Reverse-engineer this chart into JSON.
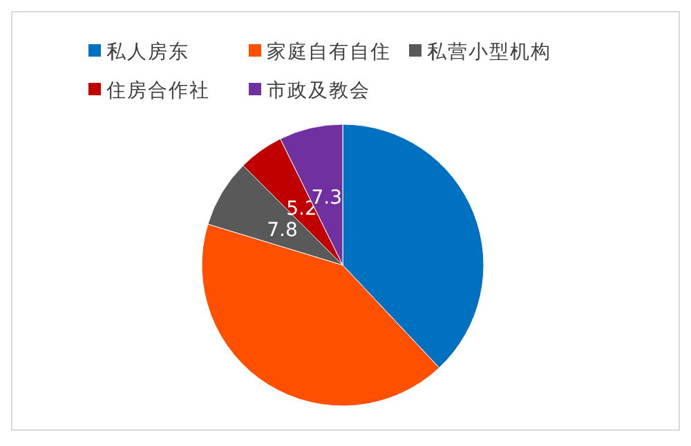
{
  "chart_data": {
    "type": "pie",
    "categories": [
      "私人房东",
      "家庭自有自住",
      "私营小型机构",
      "住房合作社",
      "市政及教会"
    ],
    "values": [
      38.0,
      41.7,
      7.8,
      5.2,
      7.3
    ],
    "colors": [
      "#0070c0",
      "#ff5000",
      "#595959",
      "#c00000",
      "#7030a0"
    ],
    "value_labels": [
      null,
      null,
      "7.8",
      "5.2",
      "7.3"
    ],
    "legend": "top"
  }
}
